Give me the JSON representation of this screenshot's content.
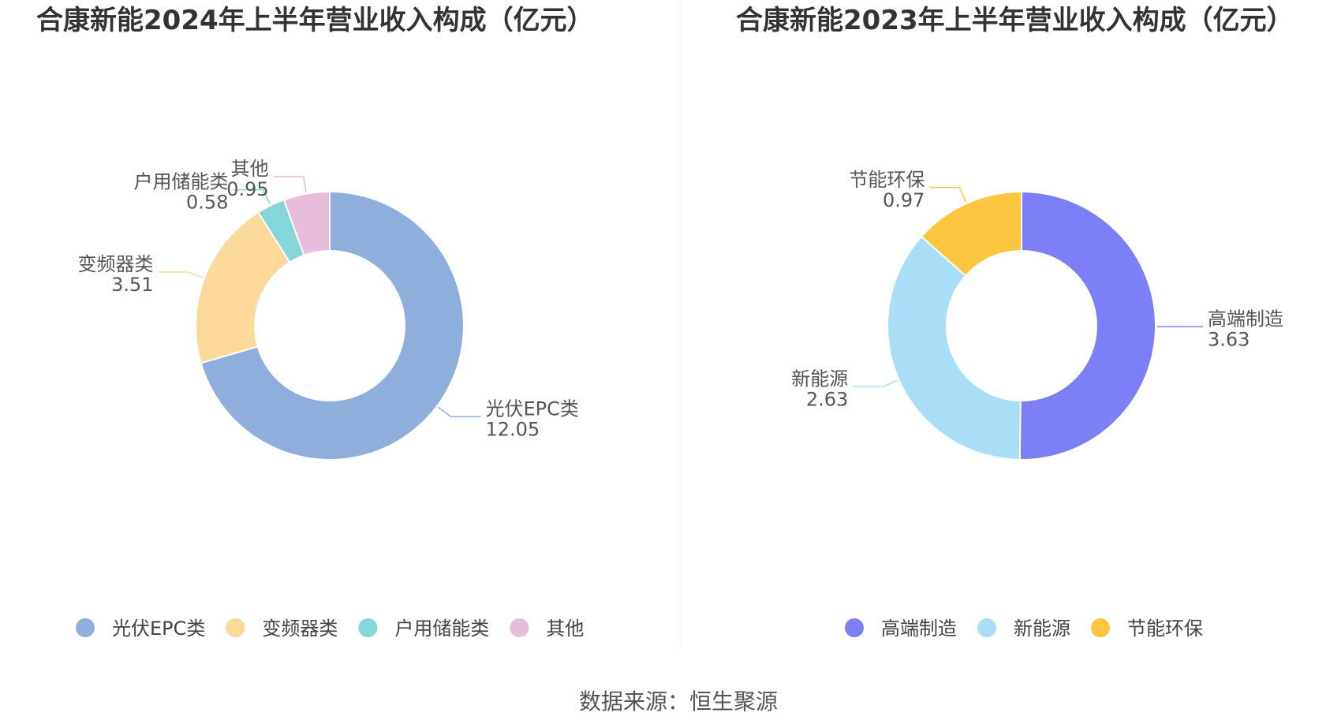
{
  "chart_data": [
    {
      "type": "pie",
      "variant": "donut",
      "title": "合康新能2024年上半年营业收入构成（亿元）",
      "unit": "亿元",
      "legend": "bottom",
      "categories": [
        "光伏EPC类",
        "变频器类",
        "户用储能类",
        "其他"
      ],
      "values": [
        12.05,
        3.51,
        0.58,
        0.95
      ],
      "value_labels": [
        "12.05",
        "3.51",
        "0.58",
        "0.95"
      ],
      "colors": [
        "#8eaedb",
        "#fdd89b",
        "#85d6d8",
        "#e8bcdb"
      ]
    },
    {
      "type": "pie",
      "variant": "donut",
      "title": "合康新能2023年上半年营业收入构成（亿元）",
      "unit": "亿元",
      "legend": "bottom",
      "categories": [
        "高端制造",
        "新能源",
        "节能环保"
      ],
      "values": [
        3.63,
        2.63,
        0.97
      ],
      "value_labels": [
        "3.63",
        "2.63",
        "0.97"
      ],
      "colors": [
        "#7c7ff5",
        "#a9def8",
        "#fdc641"
      ]
    }
  ],
  "footer": {
    "source": "数据来源：恒生聚源"
  }
}
